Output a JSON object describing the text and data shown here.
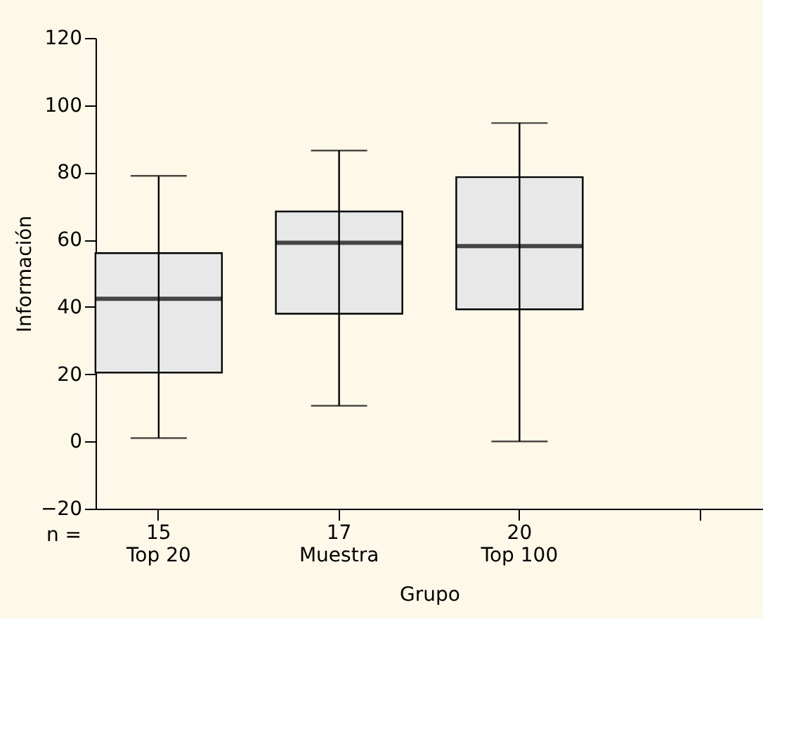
{
  "chart_data": {
    "type": "box",
    "xlabel": "Grupo",
    "ylabel": "Información",
    "categories": [
      "15\nTop 20",
      "17\nMuestra",
      "20\nTop 100"
    ],
    "boxes": [
      {
        "low": 1,
        "q1": 20.5,
        "median": 42.4,
        "q3": 56,
        "high": 79
      },
      {
        "low": 10.6,
        "q1": 38,
        "median": 59.1,
        "q3": 68.4,
        "high": 86.5
      },
      {
        "low": 0,
        "q1": 39.3,
        "median": 58.1,
        "q3": 78.6,
        "high": 94.7
      }
    ],
    "color": "#e8e8e8",
    "ylim": [
      -20,
      120
    ],
    "yticks": [
      {
        "value": -20,
        "label": "−20"
      },
      0,
      20,
      40,
      60,
      80,
      100,
      120
    ],
    "grid": false,
    "annotations": [
      "n ="
    ]
  }
}
